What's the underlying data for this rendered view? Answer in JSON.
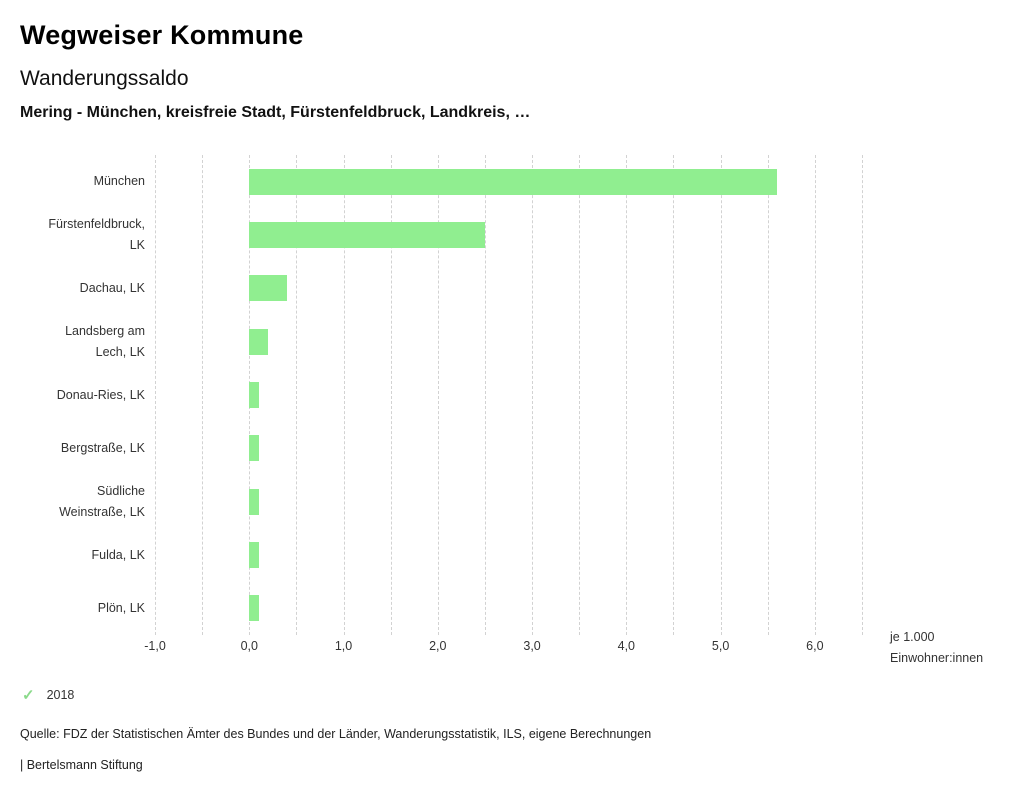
{
  "header": {
    "title": "Wegweiser Kommune",
    "subtitle": "Wanderungssaldo",
    "selection": "Mering - München, kreisfreie Stadt, Fürstenfeldbruck, Landkreis, …"
  },
  "chart_data": {
    "type": "bar",
    "orientation": "horizontal",
    "categories": [
      "München",
      "Fürstenfeldbruck,\nLK",
      "Dachau, LK",
      "Landsberg am\nLech, LK",
      "Donau-Ries, LK",
      "Bergstraße, LK",
      "Südliche\nWeinstraße, LK",
      "Fulda, LK",
      "Plön, LK"
    ],
    "values": [
      5.6,
      2.5,
      0.4,
      0.2,
      0.1,
      0.1,
      0.1,
      0.1,
      0.1
    ],
    "xlim": [
      -1.0,
      6.5
    ],
    "x_ticks": [
      -1.0,
      0.0,
      1.0,
      2.0,
      3.0,
      4.0,
      5.0,
      6.0
    ],
    "x_tick_labels": [
      "-1,0",
      "0,0",
      "1,0",
      "2,0",
      "3,0",
      "4,0",
      "5,0",
      "6,0"
    ],
    "gridline_step": 0.5,
    "grid": true,
    "bar_color": "#90ee90",
    "unit_label": "je 1.000\nEinwohner:innen",
    "year": "2018"
  },
  "legend": {
    "check_icon": "✓",
    "check_color": "#8bda8b",
    "year": "2018"
  },
  "footer": {
    "source": "Quelle: FDZ der Statistischen Ämter des Bundes und der Länder, Wanderungsstatistik, ILS, eigene Berechnungen",
    "branding": "| Bertelsmann Stiftung"
  }
}
